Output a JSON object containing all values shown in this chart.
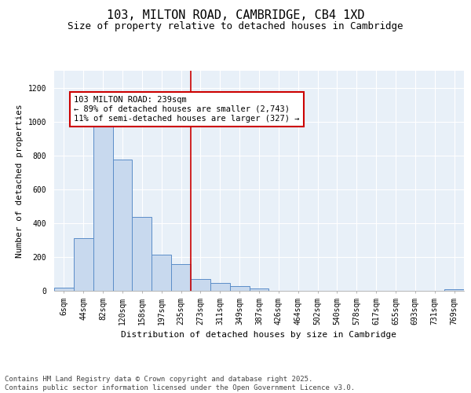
{
  "title_line1": "103, MILTON ROAD, CAMBRIDGE, CB4 1XD",
  "title_line2": "Size of property relative to detached houses in Cambridge",
  "xlabel": "Distribution of detached houses by size in Cambridge",
  "ylabel": "Number of detached properties",
  "categories": [
    "6sqm",
    "44sqm",
    "82sqm",
    "120sqm",
    "158sqm",
    "197sqm",
    "235sqm",
    "273sqm",
    "311sqm",
    "349sqm",
    "387sqm",
    "426sqm",
    "464sqm",
    "502sqm",
    "540sqm",
    "578sqm",
    "617sqm",
    "655sqm",
    "693sqm",
    "731sqm",
    "769sqm"
  ],
  "values": [
    20,
    310,
    975,
    775,
    435,
    215,
    160,
    70,
    45,
    30,
    15,
    0,
    0,
    0,
    0,
    0,
    0,
    0,
    0,
    0,
    8
  ],
  "bar_color": "#c8d9ee",
  "bar_edge_color": "#5b8dc8",
  "bg_color": "#e8f0f8",
  "grid_color": "#ffffff",
  "vline_x": 6.5,
  "vline_color": "#cc0000",
  "annotation_text": "103 MILTON ROAD: 239sqm\n← 89% of detached houses are smaller (2,743)\n11% of semi-detached houses are larger (327) →",
  "annotation_box_color": "#cc0000",
  "annotation_text_color": "#000000",
  "ylim": [
    0,
    1300
  ],
  "yticks": [
    0,
    200,
    400,
    600,
    800,
    1000,
    1200
  ],
  "footnote": "Contains HM Land Registry data © Crown copyright and database right 2025.\nContains public sector information licensed under the Open Government Licence v3.0.",
  "fig_bg": "#ffffff",
  "title_fontsize": 11,
  "subtitle_fontsize": 9,
  "axis_label_fontsize": 8,
  "tick_fontsize": 7,
  "annotation_fontsize": 7.5,
  "footnote_fontsize": 6.5
}
